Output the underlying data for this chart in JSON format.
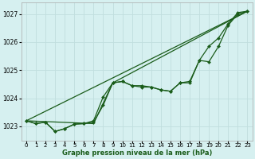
{
  "title": "Graphe pression niveau de la mer (hPa)",
  "bg_color": "#d6f0f0",
  "grid_color": "#c0dede",
  "line_color": "#1a5c1a",
  "xlim": [
    -0.5,
    23.5
  ],
  "ylim": [
    1022.5,
    1027.4
  ],
  "xticks": [
    0,
    1,
    2,
    3,
    4,
    5,
    6,
    7,
    8,
    9,
    10,
    11,
    12,
    13,
    14,
    15,
    16,
    17,
    18,
    19,
    20,
    21,
    22,
    23
  ],
  "yticks": [
    1023,
    1024,
    1025,
    1026,
    1027
  ],
  "series": [
    {
      "x": [
        0,
        1,
        2,
        3,
        4,
        5,
        6,
        7,
        8,
        9,
        10,
        11,
        12,
        13,
        14,
        15,
        16,
        17,
        18,
        19,
        20,
        21,
        22,
        23
      ],
      "y": [
        1023.2,
        1023.1,
        1023.15,
        1022.82,
        1022.92,
        1023.08,
        1023.1,
        1023.15,
        1023.75,
        1024.55,
        1024.6,
        1024.45,
        1024.45,
        1024.4,
        1024.3,
        1024.25,
        1024.55,
        1024.55,
        1025.35,
        1025.3,
        1025.85,
        1026.6,
        1027.0,
        1027.1
      ],
      "marker": true
    },
    {
      "x": [
        0,
        1,
        2,
        3,
        4,
        5,
        6,
        7,
        8,
        9,
        10,
        11,
        12,
        13,
        14,
        15,
        16,
        17,
        18,
        19,
        20,
        21,
        22,
        23
      ],
      "y": [
        1023.2,
        1023.1,
        1023.15,
        1022.82,
        1022.92,
        1023.08,
        1023.1,
        1023.2,
        1024.05,
        1024.55,
        1024.6,
        1024.45,
        1024.4,
        1024.4,
        1024.3,
        1024.25,
        1024.55,
        1024.6,
        1025.35,
        1025.85,
        1026.15,
        1026.65,
        1027.05,
        1027.1
      ],
      "marker": true
    },
    {
      "x": [
        0,
        23
      ],
      "y": [
        1023.2,
        1027.1
      ],
      "marker": false
    },
    {
      "x": [
        0,
        7,
        9,
        23
      ],
      "y": [
        1023.2,
        1023.1,
        1024.55,
        1027.1
      ],
      "marker": false
    }
  ],
  "marker_symbol": "D",
  "marker_size": 2.2,
  "linewidth": 0.9
}
